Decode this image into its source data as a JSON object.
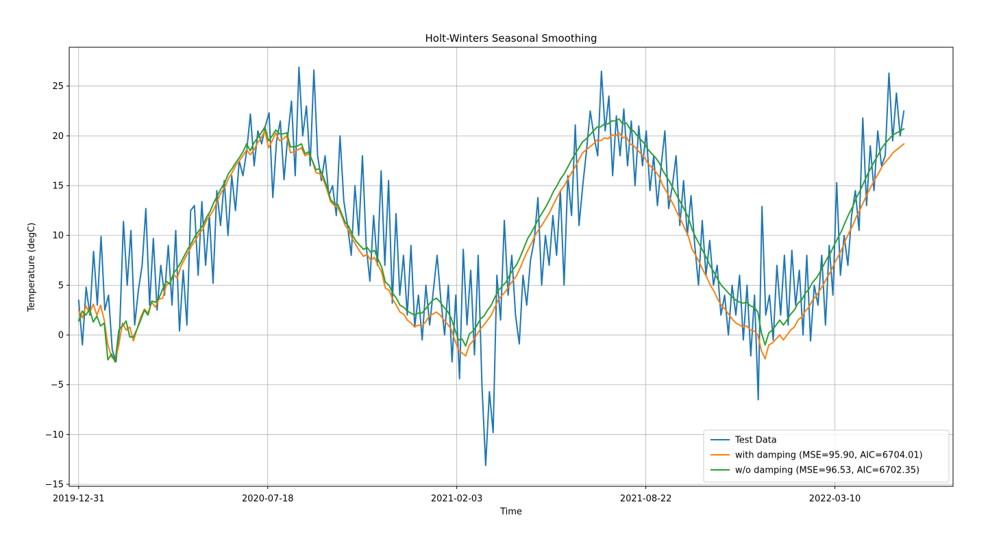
{
  "chart_data": {
    "type": "line",
    "title": "Holt-Winters Seasonal Smoothing",
    "xlabel": "Time",
    "ylabel": "Temperature (degC)",
    "x_start": "2019-12-31",
    "x_end": "2022-05-22",
    "xlim": [
      "2019-12-21",
      "2022-07-13"
    ],
    "ylim": [
      -15.2,
      28.9
    ],
    "x_ticks": [
      "2019-12-31",
      "2020-07-18",
      "2021-02-03",
      "2021-08-22",
      "2022-03-10"
    ],
    "y_ticks": [
      -15,
      -10,
      -5,
      0,
      5,
      10,
      15,
      20,
      25
    ],
    "grid": true,
    "legend_position": "lower-right",
    "series": [
      {
        "name": "Test Data",
        "color": "#1f77b4",
        "values": [
          3.5,
          -1.0,
          4.8,
          2.0,
          8.4,
          3.0,
          9.9,
          2.5,
          4.0,
          -1.5,
          -2.7,
          0.8,
          11.4,
          5.0,
          10.5,
          1.0,
          4.5,
          7.0,
          12.7,
          3.0,
          9.7,
          2.5,
          7.0,
          4.0,
          9.0,
          3.0,
          10.5,
          0.4,
          6.5,
          1.0,
          12.5,
          13.0,
          6.0,
          13.4,
          7.0,
          12.0,
          5.2,
          14.5,
          11.0,
          15.5,
          10.0,
          16.0,
          12.5,
          17.5,
          16.0,
          18.5,
          22.2,
          17.0,
          20.5,
          19.2,
          21.0,
          22.3,
          13.8,
          19.5,
          21.5,
          15.6,
          20.0,
          23.5,
          16.0,
          26.9,
          20.0,
          23.0,
          17.0,
          26.6,
          18.0,
          15.5,
          18.0,
          14.0,
          15.0,
          12.0,
          20.0,
          13.5,
          11.0,
          8.0,
          15.0,
          10.0,
          18.0,
          9.0,
          5.4,
          12.0,
          7.0,
          16.5,
          7.0,
          15.5,
          3.2,
          12.2,
          4.0,
          8.0,
          2.0,
          9.0,
          0.8,
          4.0,
          -0.5,
          5.0,
          1.0,
          4.5,
          8.0,
          3.5,
          0.0,
          5.0,
          -2.7,
          4.0,
          -4.4,
          8.6,
          1.0,
          6.5,
          -2.0,
          8.0,
          -5.0,
          -13.1,
          -5.7,
          -9.8,
          6.0,
          1.5,
          11.5,
          4.0,
          8.0,
          2.0,
          -0.9,
          6.0,
          3.0,
          7.5,
          9.5,
          13.8,
          5.0,
          10.0,
          7.0,
          12.0,
          8.0,
          14.5,
          5.0,
          16.0,
          12.0,
          21.1,
          11.0,
          15.0,
          18.5,
          22.5,
          20.0,
          18.0,
          26.5,
          20.5,
          24.0,
          16.0,
          22.0,
          18.0,
          22.7,
          17.0,
          21.5,
          15.0,
          21.0,
          17.0,
          20.5,
          14.5,
          18.0,
          13.0,
          17.0,
          20.5,
          12.7,
          15.0,
          18.0,
          11.0,
          15.5,
          10.0,
          14.0,
          9.0,
          5.0,
          11.5,
          6.0,
          9.5,
          5.0,
          7.0,
          2.0,
          4.0,
          0.0,
          5.0,
          2.0,
          6.0,
          -0.5,
          5.0,
          -2.1,
          4.0,
          -6.5,
          12.9,
          2.0,
          4.0,
          -0.5,
          7.0,
          2.0,
          8.0,
          1.0,
          8.5,
          3.0,
          6.5,
          0.0,
          8.0,
          -0.6,
          5.0,
          3.0,
          8.0,
          1.0,
          9.0,
          4.0,
          15.3,
          6.0,
          10.0,
          7.0,
          12.0,
          14.5,
          10.5,
          21.8,
          13.0,
          19.0,
          14.5,
          20.5,
          17.0,
          18.0,
          26.3,
          19.5,
          24.3,
          20.0,
          22.5
        ]
      },
      {
        "name": "with damping (MSE=95.90, AIC=6704.01)",
        "color": "#ff7f0e",
        "values": [
          2.5,
          1.7,
          2.9,
          2.2,
          3.1,
          2.0,
          3.0,
          1.5,
          -1.0,
          -2.2,
          -2.6,
          -1.0,
          1.2,
          0.5,
          0.8,
          -0.6,
          0.6,
          1.8,
          2.6,
          2.2,
          3.3,
          2.8,
          3.6,
          3.7,
          5.0,
          5.3,
          6.1,
          5.7,
          6.9,
          7.6,
          8.3,
          9.0,
          9.5,
          10.2,
          10.6,
          11.5,
          12.0,
          12.6,
          13.5,
          14.3,
          14.8,
          15.7,
          16.3,
          17.0,
          17.5,
          18.0,
          18.6,
          18.1,
          18.6,
          19.3,
          19.8,
          20.5,
          18.8,
          19.5,
          20.3,
          19.5,
          19.7,
          20.0,
          18.3,
          18.4,
          18.6,
          18.8,
          18.0,
          18.2,
          17.5,
          16.3,
          16.2,
          15.6,
          14.6,
          13.4,
          13.0,
          12.8,
          12.0,
          11.0,
          10.5,
          9.6,
          9.0,
          8.4,
          7.9,
          8.1,
          7.5,
          7.8,
          7.0,
          6.3,
          4.7,
          4.5,
          3.6,
          3.0,
          2.3,
          2.1,
          1.5,
          1.2,
          0.8,
          1.0,
          0.9,
          1.3,
          1.9,
          2.1,
          2.3,
          2.0,
          1.5,
          1.1,
          0.6,
          -0.5,
          -1.5,
          -1.8,
          -2.1,
          -1.0,
          -0.6,
          0.0,
          0.6,
          1.0,
          1.5,
          2.0,
          2.8,
          3.6,
          4.0,
          4.4,
          5.0,
          5.5,
          6.0,
          6.8,
          7.7,
          8.5,
          9.2,
          10.0,
          10.6,
          11.1,
          11.7,
          12.3,
          13.1,
          13.8,
          14.5,
          15.0,
          15.7,
          16.3,
          16.9,
          17.6,
          18.3,
          18.6,
          18.9,
          19.2,
          19.6,
          19.5,
          19.8,
          19.7,
          20.1,
          20.0,
          20.3,
          19.8,
          19.9,
          19.2,
          19.0,
          18.6,
          18.2,
          17.8,
          17.2,
          16.8,
          16.4,
          15.9,
          15.0,
          14.4,
          13.7,
          13.0,
          12.2,
          11.5,
          10.7,
          9.9,
          8.6,
          8.0,
          7.3,
          6.5,
          5.8,
          5.0,
          4.4,
          3.6,
          3.0,
          2.6,
          2.1,
          1.6,
          1.2,
          1.0,
          0.8,
          0.9,
          0.5,
          0.4,
          0.0,
          -1.6,
          -2.4,
          -1.0,
          -0.8,
          -0.4,
          0.0,
          -0.5,
          0.0,
          0.5,
          0.8,
          1.5,
          1.8,
          2.4,
          2.8,
          3.5,
          3.9,
          4.5,
          5.1,
          5.8,
          6.4,
          7.2,
          7.9,
          8.6,
          9.5,
          10.3,
          11.0,
          11.9,
          12.6,
          13.4,
          14.2,
          14.9,
          15.6,
          16.2,
          16.9,
          17.4,
          17.8,
          18.3,
          18.6,
          18.9,
          19.2
        ]
      },
      {
        "name": "w/o damping (MSE=96.53, AIC=6702.35)",
        "color": "#2ca02c",
        "values": [
          1.4,
          2.4,
          2.0,
          2.6,
          1.3,
          1.9,
          0.9,
          1.2,
          -2.5,
          -1.9,
          -2.7,
          0.5,
          0.9,
          1.4,
          -0.2,
          -0.2,
          0.6,
          1.5,
          2.5,
          2.0,
          3.4,
          3.3,
          3.7,
          4.6,
          5.4,
          5.1,
          6.2,
          6.7,
          7.3,
          8.0,
          8.7,
          9.3,
          10.0,
          10.5,
          11.0,
          11.8,
          12.4,
          13.3,
          14.0,
          14.7,
          15.3,
          16.2,
          16.7,
          17.3,
          17.8,
          18.4,
          19.2,
          18.5,
          19.3,
          19.8,
          20.3,
          20.9,
          19.5,
          20.0,
          20.6,
          20.2,
          20.2,
          20.3,
          18.9,
          18.9,
          19.0,
          19.2,
          18.2,
          18.4,
          17.5,
          16.6,
          16.7,
          15.9,
          14.9,
          13.6,
          13.2,
          13.1,
          12.2,
          11.3,
          10.9,
          10.0,
          9.4,
          9.0,
          8.6,
          8.8,
          8.3,
          8.5,
          7.6,
          6.8,
          5.3,
          5.0,
          4.2,
          3.7,
          3.0,
          2.8,
          2.4,
          2.2,
          2.0,
          2.2,
          2.2,
          2.6,
          3.1,
          3.5,
          3.7,
          3.3,
          2.8,
          2.4,
          1.7,
          0.6,
          -0.5,
          -0.4,
          -1.1,
          0.1,
          0.4,
          0.9,
          1.6,
          1.9,
          2.5,
          3.0,
          3.8,
          4.5,
          4.9,
          5.3,
          6.0,
          6.6,
          7.1,
          7.9,
          8.8,
          9.7,
          10.3,
          11.0,
          11.7,
          12.3,
          12.9,
          13.6,
          14.4,
          15.0,
          15.7,
          16.2,
          16.9,
          17.6,
          18.2,
          18.8,
          19.4,
          19.7,
          20.1,
          20.5,
          20.9,
          20.9,
          21.2,
          21.2,
          21.5,
          21.5,
          21.7,
          21.2,
          21.3,
          20.7,
          20.5,
          20.0,
          19.6,
          19.2,
          18.6,
          18.2,
          17.8,
          17.3,
          16.5,
          15.9,
          15.3,
          14.6,
          13.9,
          13.2,
          12.5,
          11.8,
          10.6,
          9.8,
          9.1,
          8.4,
          7.7,
          6.9,
          6.3,
          5.6,
          5.0,
          4.6,
          4.2,
          3.8,
          3.5,
          3.3,
          3.2,
          3.3,
          2.9,
          2.8,
          2.3,
          0.2,
          -1.0,
          0.2,
          0.5,
          1.0,
          1.5,
          1.0,
          1.5,
          2.1,
          2.5,
          3.2,
          3.5,
          4.2,
          4.6,
          5.3,
          5.7,
          6.3,
          7.0,
          7.7,
          8.3,
          9.1,
          9.8,
          10.5,
          11.4,
          12.2,
          12.9,
          13.8,
          14.5,
          15.3,
          16.1,
          16.8,
          17.5,
          18.1,
          18.8,
          19.3,
          19.7,
          20.1,
          20.3,
          20.5,
          20.7
        ]
      }
    ]
  }
}
